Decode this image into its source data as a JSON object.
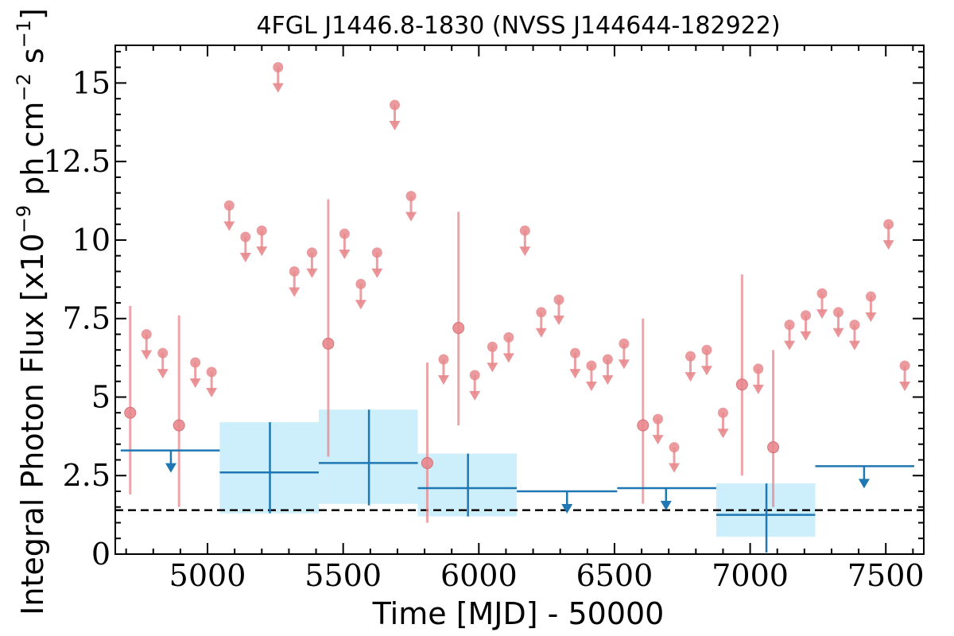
{
  "chart_data": {
    "type": "scatter",
    "title": "4FGL J1446.8-1830 (NVSS J144644-182922)",
    "xlabel": "Time [MJD] - 50000",
    "ylabel": "Integral Photon Flux [x10^-9 ph cm^-2 s^-1]",
    "ylabel_parts": {
      "base": "Integral Photon Flux [x10",
      "exp1": "−9",
      "mid1": " ph cm",
      "exp2": "−2",
      "mid2": " s",
      "exp3": "−1",
      "end": "]"
    },
    "xlim": [
      4660,
      7640
    ],
    "ylim": [
      0,
      16.2
    ],
    "x_ticks": [
      5000,
      5500,
      6000,
      6500,
      7000,
      7500
    ],
    "x_tick_labels": [
      "5000",
      "5500",
      "6000",
      "6500",
      "7000",
      "7500"
    ],
    "y_ticks": [
      0,
      2.5,
      5,
      7.5,
      10,
      12.5,
      15
    ],
    "y_tick_labels": [
      "0",
      "2.5",
      "5",
      "7.5",
      "10",
      "12.5",
      "15"
    ],
    "colors": {
      "monthly": "#e8888d",
      "yearly": "#1f77b4",
      "yearly_band": "#cdeefb",
      "baseline": "#000000"
    },
    "baseline": 1.4,
    "series": [
      {
        "role": "monthly",
        "detections": [
          {
            "x": 4715,
            "y": 4.5,
            "lo": 1.9,
            "hi": 7.9
          },
          {
            "x": 4895,
            "y": 4.1,
            "lo": 1.5,
            "hi": 7.6
          },
          {
            "x": 5445,
            "y": 6.7,
            "lo": 3.1,
            "hi": 11.3
          },
          {
            "x": 5810,
            "y": 2.9,
            "lo": 1.0,
            "hi": 6.1
          },
          {
            "x": 5925,
            "y": 7.2,
            "lo": 4.1,
            "hi": 10.9
          },
          {
            "x": 6605,
            "y": 4.1,
            "lo": 1.6,
            "hi": 7.5
          },
          {
            "x": 6970,
            "y": 5.4,
            "lo": 2.5,
            "hi": 8.9
          },
          {
            "x": 7085,
            "y": 3.4,
            "lo": 1.5,
            "hi": 6.5
          }
        ],
        "upper_limits": [
          {
            "x": 4775,
            "y": 7.0
          },
          {
            "x": 4835,
            "y": 6.4
          },
          {
            "x": 4955,
            "y": 6.1
          },
          {
            "x": 5015,
            "y": 5.8
          },
          {
            "x": 5080,
            "y": 11.1
          },
          {
            "x": 5140,
            "y": 10.1
          },
          {
            "x": 5200,
            "y": 10.3
          },
          {
            "x": 5260,
            "y": 15.5
          },
          {
            "x": 5320,
            "y": 9.0
          },
          {
            "x": 5385,
            "y": 9.6
          },
          {
            "x": 5505,
            "y": 10.2
          },
          {
            "x": 5565,
            "y": 8.6
          },
          {
            "x": 5625,
            "y": 9.6
          },
          {
            "x": 5690,
            "y": 14.3
          },
          {
            "x": 5750,
            "y": 11.4
          },
          {
            "x": 5870,
            "y": 6.2
          },
          {
            "x": 5985,
            "y": 5.7
          },
          {
            "x": 6050,
            "y": 6.6
          },
          {
            "x": 6110,
            "y": 6.9
          },
          {
            "x": 6170,
            "y": 10.3
          },
          {
            "x": 6230,
            "y": 7.7
          },
          {
            "x": 6295,
            "y": 8.1
          },
          {
            "x": 6355,
            "y": 6.4
          },
          {
            "x": 6415,
            "y": 6.0
          },
          {
            "x": 6475,
            "y": 6.2
          },
          {
            "x": 6535,
            "y": 6.7
          },
          {
            "x": 6660,
            "y": 4.3
          },
          {
            "x": 6720,
            "y": 3.4
          },
          {
            "x": 6780,
            "y": 6.3
          },
          {
            "x": 6840,
            "y": 6.5
          },
          {
            "x": 6900,
            "y": 4.5
          },
          {
            "x": 7030,
            "y": 5.9
          },
          {
            "x": 7145,
            "y": 7.3
          },
          {
            "x": 7205,
            "y": 7.6
          },
          {
            "x": 7265,
            "y": 8.3
          },
          {
            "x": 7325,
            "y": 7.7
          },
          {
            "x": 7385,
            "y": 7.3
          },
          {
            "x": 7445,
            "y": 8.2
          },
          {
            "x": 7510,
            "y": 10.5
          },
          {
            "x": 7570,
            "y": 6.0
          }
        ]
      },
      {
        "role": "yearly",
        "detections": [
          {
            "x0": 5045,
            "x1": 5410,
            "xc": 5230,
            "y": 2.6,
            "lo": 1.3,
            "hi": 4.2,
            "band_lo": 1.3,
            "band_hi": 4.2
          },
          {
            "x0": 5410,
            "x1": 5775,
            "xc": 5595,
            "y": 2.9,
            "lo": 1.55,
            "hi": 4.6,
            "band_lo": 1.6,
            "band_hi": 4.6
          },
          {
            "x0": 5775,
            "x1": 6140,
            "xc": 5960,
            "y": 2.1,
            "lo": 1.2,
            "hi": 3.2,
            "band_lo": 1.2,
            "band_hi": 3.2
          },
          {
            "x0": 6875,
            "x1": 7240,
            "xc": 7060,
            "y": 1.25,
            "lo": 0.05,
            "hi": 2.25,
            "band_lo": 0.55,
            "band_hi": 2.25
          }
        ],
        "upper_limits": [
          {
            "x0": 4680,
            "x1": 5045,
            "xc": 4865,
            "y": 3.3
          },
          {
            "x0": 6140,
            "x1": 6510,
            "xc": 6325,
            "y": 2.0
          },
          {
            "x0": 6510,
            "x1": 6875,
            "xc": 6690,
            "y": 2.1
          },
          {
            "x0": 7240,
            "x1": 7605,
            "xc": 7420,
            "y": 2.8
          }
        ]
      }
    ]
  }
}
